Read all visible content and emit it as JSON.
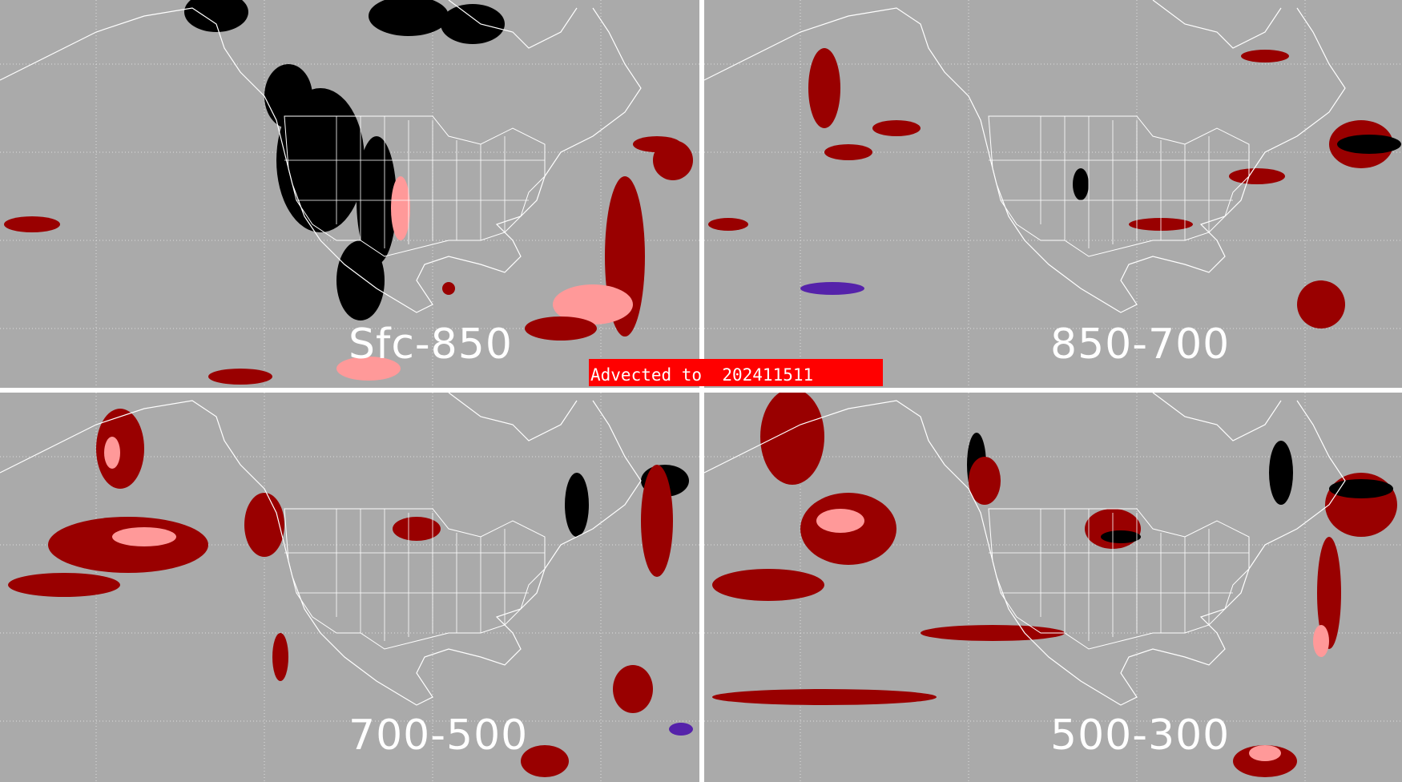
{
  "banner": {
    "text": "Advected to  202411511",
    "color": "#ff0000"
  },
  "panels": [
    {
      "label": "Sfc-850"
    },
    {
      "label": "850-700"
    },
    {
      "label": "700-500"
    },
    {
      "label": "500-300"
    }
  ],
  "colors": {
    "background": "#aaaaaa",
    "outline": "#ffffff",
    "dark_red": "#990000",
    "pink": "#ff9999",
    "black": "#000000",
    "purple": "#5522aa"
  }
}
